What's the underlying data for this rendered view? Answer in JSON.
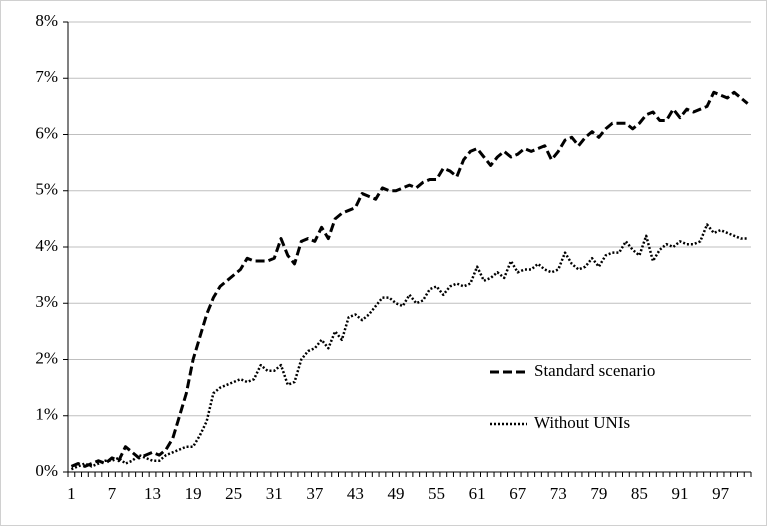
{
  "chart_data": {
    "type": "line",
    "categories": [
      "1",
      null,
      null,
      null,
      null,
      null,
      "7",
      null,
      null,
      null,
      null,
      null,
      "13",
      null,
      null,
      null,
      null,
      null,
      "19",
      null,
      null,
      null,
      null,
      null,
      "25",
      null,
      null,
      null,
      null,
      null,
      "31",
      null,
      null,
      null,
      null,
      null,
      "37",
      null,
      null,
      null,
      null,
      null,
      "43",
      null,
      null,
      null,
      null,
      null,
      "49",
      null,
      null,
      null,
      null,
      null,
      "55",
      null,
      null,
      null,
      null,
      null,
      "61",
      null,
      null,
      null,
      null,
      null,
      "67",
      null,
      null,
      null,
      null,
      null,
      "73",
      null,
      null,
      null,
      null,
      null,
      "79",
      null,
      null,
      null,
      null,
      null,
      "85",
      null,
      null,
      null,
      null,
      null,
      "91",
      null,
      null,
      null,
      null,
      null,
      "97",
      null,
      null,
      null,
      null
    ],
    "series": [
      {
        "name": "Standard scenario",
        "color": "#000000",
        "dash": "dashed",
        "values": [
          0.1,
          0.15,
          0.1,
          0.15,
          0.2,
          0.15,
          0.25,
          0.2,
          0.45,
          0.35,
          0.25,
          0.3,
          0.35,
          0.3,
          0.4,
          0.6,
          1.0,
          1.4,
          2.0,
          2.4,
          2.8,
          3.1,
          3.3,
          3.4,
          3.5,
          3.6,
          3.8,
          3.75,
          3.75,
          3.75,
          3.8,
          4.15,
          3.85,
          3.7,
          4.1,
          4.15,
          4.1,
          4.35,
          4.15,
          4.5,
          4.6,
          4.65,
          4.7,
          4.95,
          4.9,
          4.85,
          5.05,
          5.0,
          5.0,
          5.05,
          5.1,
          5.05,
          5.15,
          5.2,
          5.2,
          5.4,
          5.35,
          5.25,
          5.55,
          5.7,
          5.75,
          5.6,
          5.45,
          5.6,
          5.7,
          5.6,
          5.65,
          5.75,
          5.7,
          5.75,
          5.8,
          5.55,
          5.7,
          5.9,
          5.95,
          5.8,
          5.95,
          6.05,
          5.95,
          6.1,
          6.2,
          6.2,
          6.2,
          6.1,
          6.2,
          6.35,
          6.4,
          6.25,
          6.25,
          6.45,
          6.3,
          6.45,
          6.4,
          6.45,
          6.5,
          6.75,
          6.7,
          6.65,
          6.75,
          6.65,
          6.55
        ]
      },
      {
        "name": "Without UNIs",
        "color": "#000000",
        "dash": "dotted",
        "values": [
          0.05,
          0.1,
          0.15,
          0.1,
          0.15,
          0.2,
          0.2,
          0.25,
          0.15,
          0.2,
          0.3,
          0.25,
          0.2,
          0.2,
          0.3,
          0.35,
          0.4,
          0.45,
          0.45,
          0.65,
          0.9,
          1.4,
          1.5,
          1.55,
          1.6,
          1.65,
          1.6,
          1.65,
          1.9,
          1.8,
          1.8,
          1.9,
          1.55,
          1.6,
          2.0,
          2.15,
          2.2,
          2.35,
          2.2,
          2.5,
          2.35,
          2.75,
          2.8,
          2.7,
          2.8,
          2.95,
          3.1,
          3.1,
          3.0,
          2.95,
          3.15,
          3.0,
          3.05,
          3.25,
          3.3,
          3.15,
          3.3,
          3.35,
          3.3,
          3.35,
          3.65,
          3.4,
          3.45,
          3.55,
          3.45,
          3.75,
          3.55,
          3.6,
          3.6,
          3.7,
          3.6,
          3.55,
          3.6,
          3.9,
          3.7,
          3.6,
          3.65,
          3.8,
          3.65,
          3.85,
          3.9,
          3.9,
          4.1,
          3.95,
          3.85,
          4.2,
          3.75,
          3.95,
          4.05,
          4.0,
          4.1,
          4.05,
          4.05,
          4.1,
          4.4,
          4.25,
          4.3,
          4.25,
          4.2,
          4.15,
          4.15
        ]
      }
    ],
    "ylim": [
      0,
      8
    ],
    "yticks": [
      {
        "value": 0,
        "label": "0%"
      },
      {
        "value": 1,
        "label": "1%"
      },
      {
        "value": 2,
        "label": "2%"
      },
      {
        "value": 3,
        "label": "3%"
      },
      {
        "value": 4,
        "label": "4%"
      },
      {
        "value": 5,
        "label": "5%"
      },
      {
        "value": 6,
        "label": "6%"
      },
      {
        "value": 7,
        "label": "7%"
      },
      {
        "value": 8,
        "label": "8%"
      }
    ],
    "grid": true
  }
}
